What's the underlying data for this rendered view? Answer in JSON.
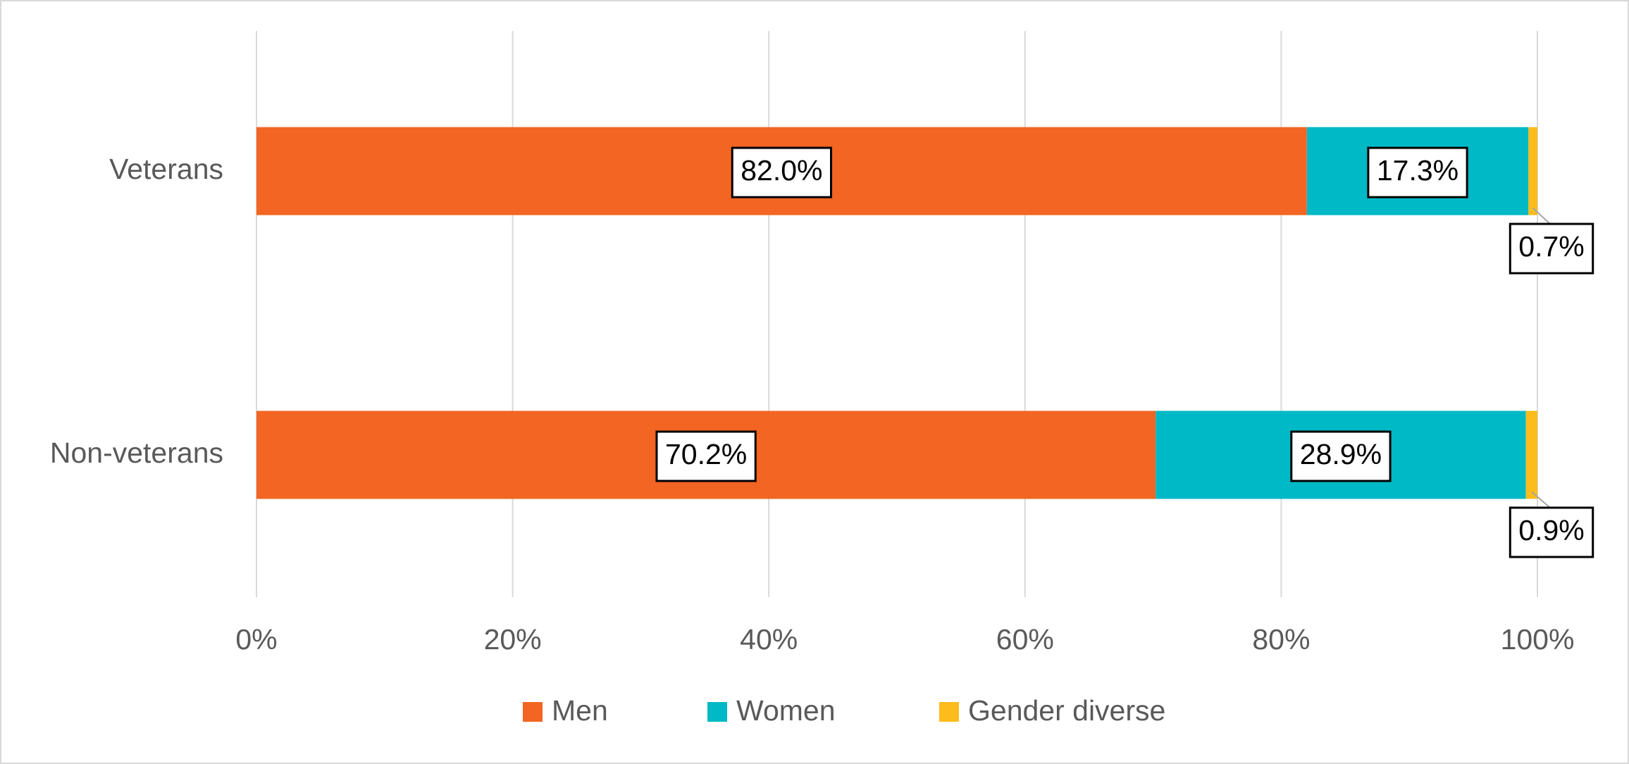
{
  "chart_data": {
    "type": "stacked-bar-horizontal",
    "categories": [
      "Veterans",
      "Non-veterans"
    ],
    "series": [
      {
        "name": "Men",
        "color": "#f26522",
        "values": [
          82.0,
          70.2
        ],
        "value_labels": [
          "82.0%",
          "70.2%"
        ]
      },
      {
        "name": "Women",
        "color": "#00b9c6",
        "values": [
          17.3,
          28.9
        ],
        "value_labels": [
          "17.3%",
          "28.9%"
        ]
      },
      {
        "name": "Gender diverse",
        "color": "#fbbc1c",
        "values": [
          0.7,
          0.9
        ],
        "value_labels": [
          "0.7%",
          "0.9%"
        ]
      }
    ],
    "xlim": [
      0,
      100
    ],
    "xticks": [
      {
        "value": 0,
        "label": "0%"
      },
      {
        "value": 20,
        "label": "20%"
      },
      {
        "value": 40,
        "label": "40%"
      },
      {
        "value": 60,
        "label": "60%"
      },
      {
        "value": 80,
        "label": "80%"
      },
      {
        "value": 100,
        "label": "100%"
      }
    ],
    "grid": true,
    "legend": "bottom"
  }
}
